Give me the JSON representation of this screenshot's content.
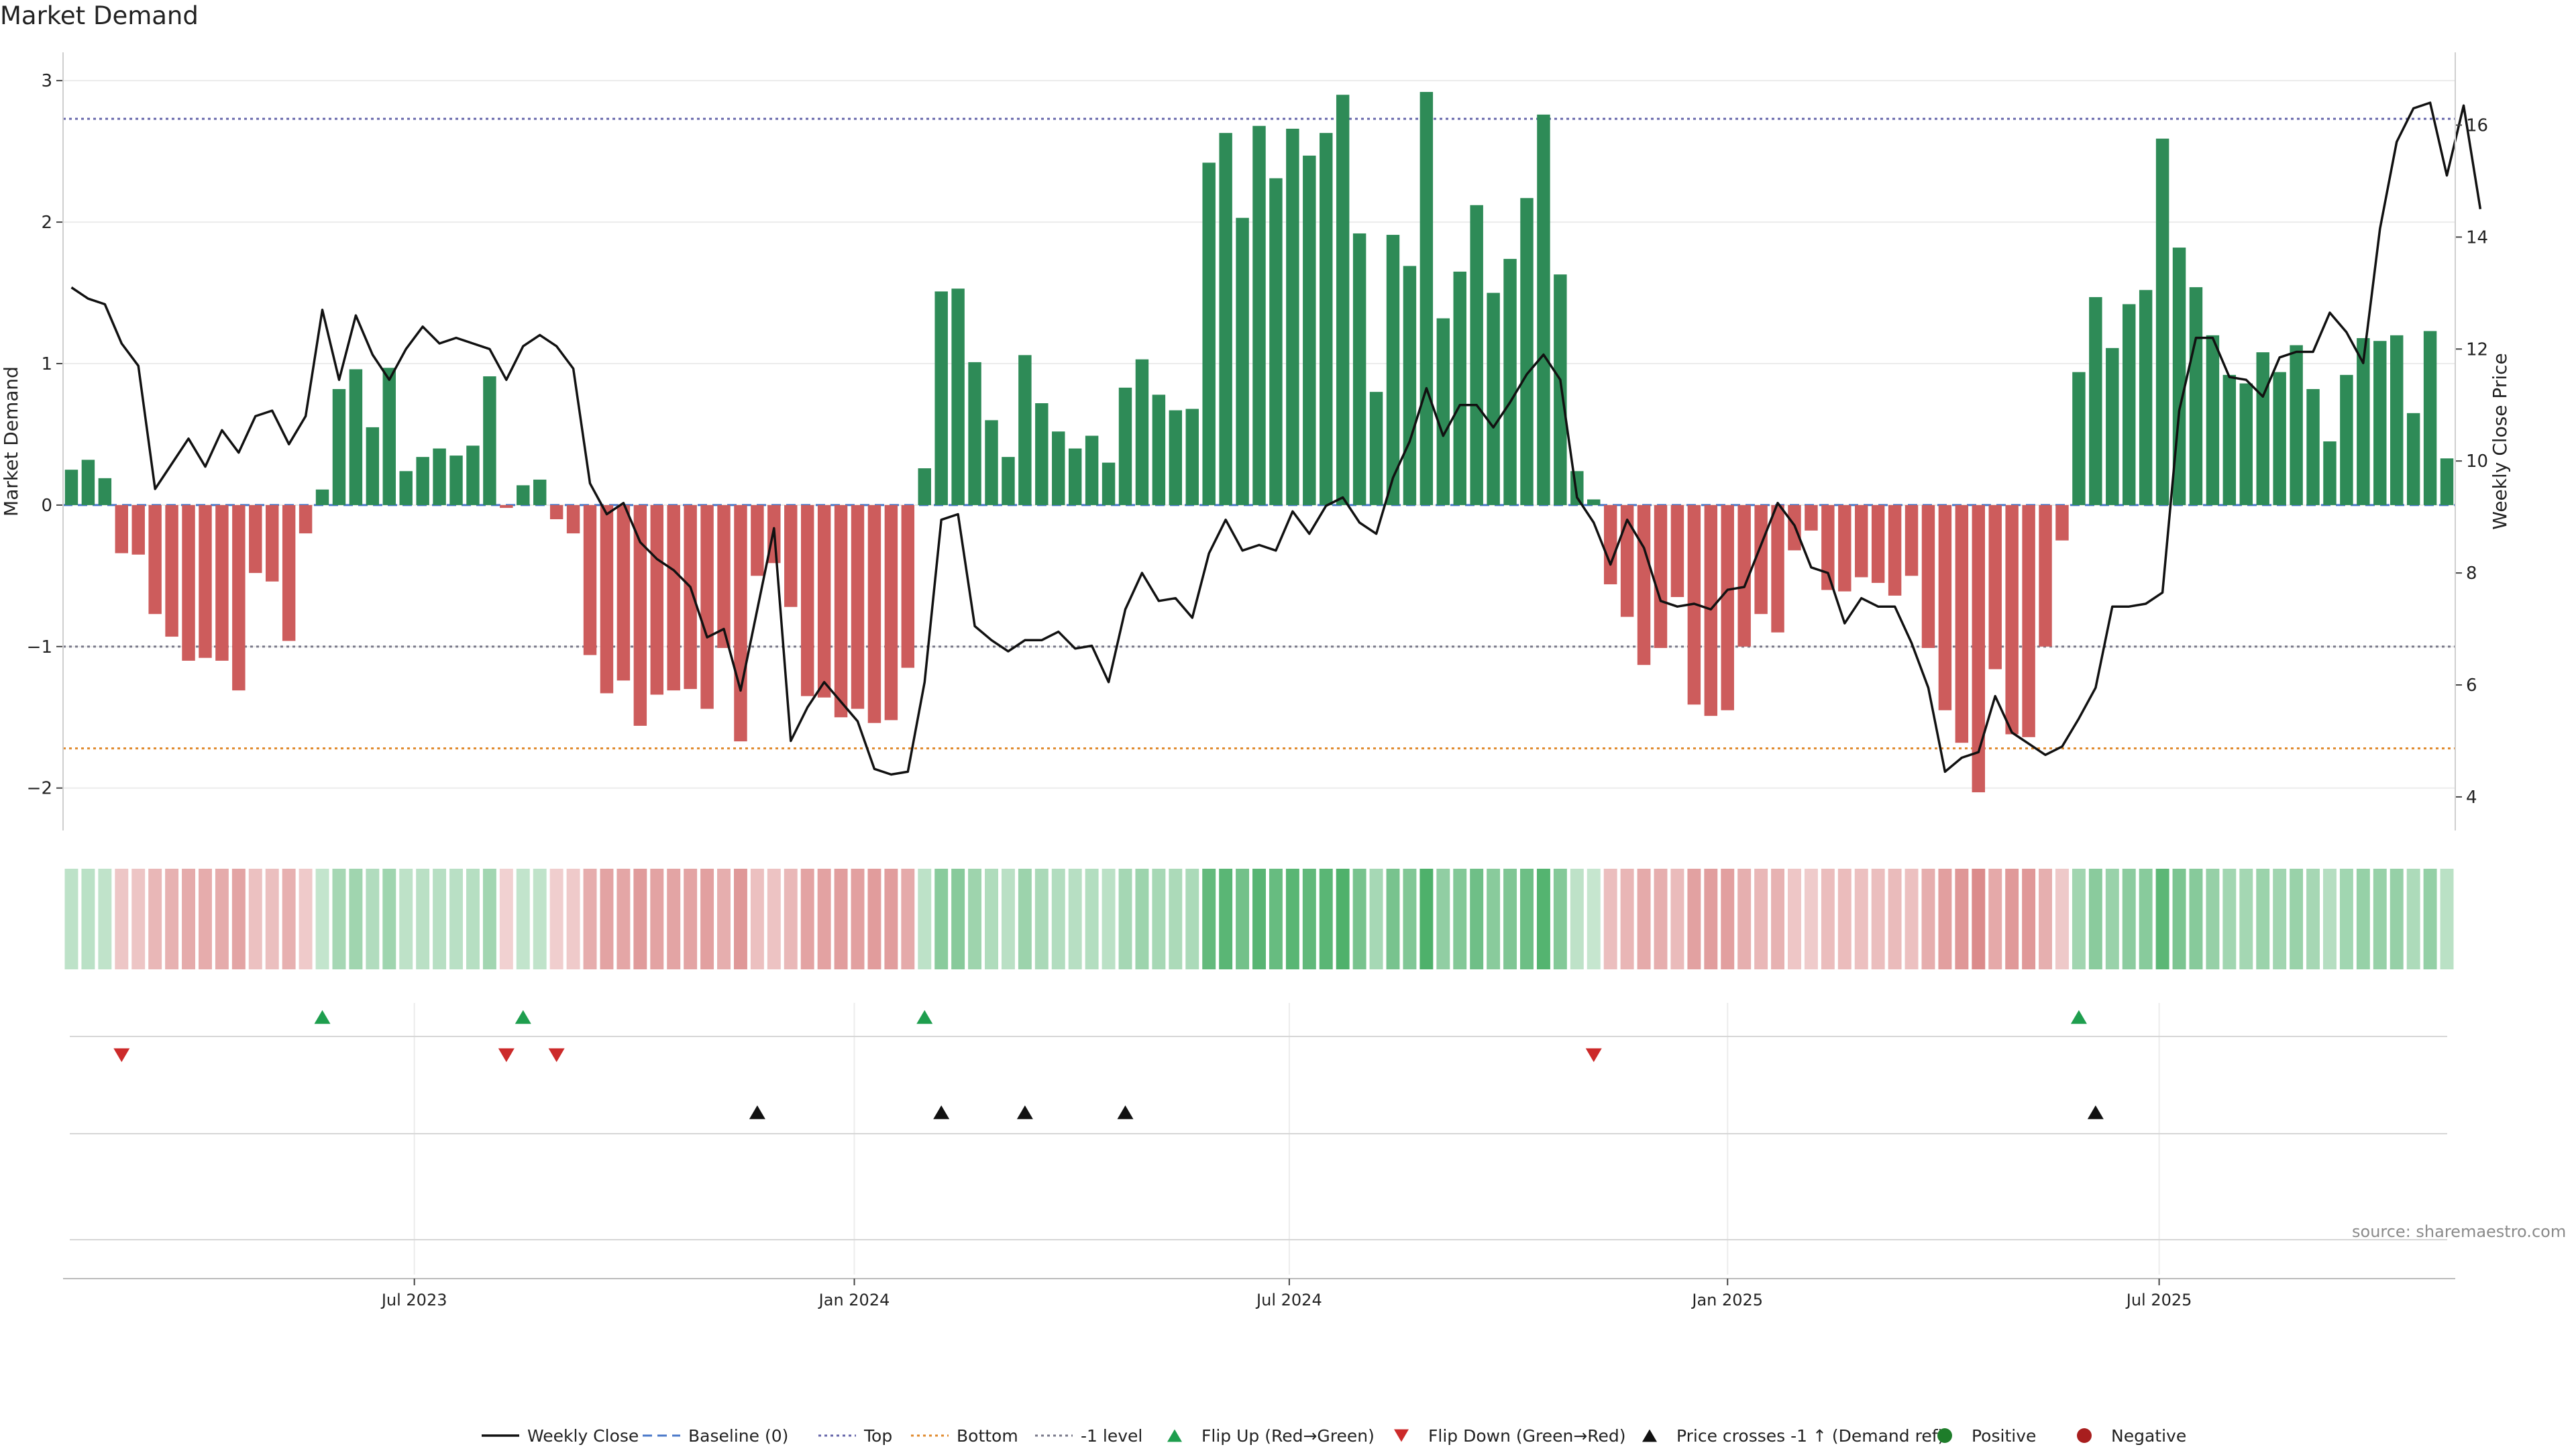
{
  "chart_data": {
    "type": "bar",
    "title": "Market Demand",
    "xlabel": "",
    "ylabel": "Market Demand",
    "y2label": "Weekly Close Price",
    "ylim": [
      -2.3,
      3.2
    ],
    "y2lim": [
      3.4,
      17.3
    ],
    "yticks": [
      3,
      2,
      1,
      0,
      -1,
      -2
    ],
    "yticklabels": [
      "3",
      "2",
      "1",
      "0",
      "−1",
      "−2"
    ],
    "y2ticks": [
      16,
      14,
      12,
      10,
      8,
      6,
      4
    ],
    "y2ticklabels": [
      "16",
      "14",
      "12",
      "10",
      "8",
      "6",
      "4"
    ],
    "xticks": [
      "Jul 2023",
      "Jan 2024",
      "Jul 2024",
      "Jan 2025",
      "Jul 2025"
    ],
    "xtick_index": [
      20.5,
      46.8,
      72.8,
      99.0,
      124.8
    ],
    "levels": {
      "top": 2.73,
      "bottom": -1.72,
      "neg_one": -1.0,
      "baseline": 0
    },
    "colors": {
      "positive": "#2e8b57",
      "negative": "#cd5c5c",
      "price": "#111111",
      "baseline": "#4a78c9",
      "top": "#6666aa",
      "bottom": "#e08a2c",
      "neg_level": "#777788",
      "flip_up": "#1e9e4e",
      "flip_down": "#cc2a2a",
      "cross": "#111111",
      "pos_dot": "#1e7d2a",
      "neg_dot": "#a81e1e"
    },
    "series": [
      {
        "name": "Market Demand",
        "values": [
          0.25,
          0.32,
          0.19,
          -0.34,
          -0.35,
          -0.77,
          -0.93,
          -1.1,
          -1.08,
          -1.1,
          -1.31,
          -0.48,
          -0.54,
          -0.96,
          -0.2,
          0.11,
          0.82,
          0.96,
          0.55,
          0.97,
          0.24,
          0.34,
          0.4,
          0.35,
          0.42,
          0.91,
          -0.02,
          0.14,
          0.18,
          -0.1,
          -0.2,
          -1.06,
          -1.33,
          -1.24,
          -1.56,
          -1.34,
          -1.31,
          -1.3,
          -1.44,
          -1.01,
          -1.67,
          -0.5,
          -0.41,
          -0.72,
          -1.35,
          -1.36,
          -1.5,
          -1.44,
          -1.54,
          -1.52,
          -1.15,
          0.26,
          1.51,
          1.53,
          1.01,
          0.6,
          0.34,
          1.06,
          0.72,
          0.52,
          0.4,
          0.49,
          0.3,
          0.83,
          1.03,
          0.78,
          0.67,
          0.68,
          2.42,
          2.63,
          2.03,
          2.68,
          2.31,
          2.66,
          2.47,
          2.63,
          2.9,
          1.92,
          0.8,
          1.91,
          1.69,
          2.92,
          1.32,
          1.65,
          2.12,
          1.5,
          1.74,
          2.17,
          2.76,
          1.63,
          0.24,
          0.04,
          -0.56,
          -0.79,
          -1.13,
          -1.01,
          -0.65,
          -1.41,
          -1.49,
          -1.45,
          -1.0,
          -0.77,
          -0.9,
          -0.32,
          -0.18,
          -0.6,
          -0.61,
          -0.51,
          -0.55,
          -0.64,
          -0.5,
          -1.01,
          -1.45,
          -1.68,
          -2.03,
          -1.16,
          -1.62,
          -1.64,
          -1.0,
          -0.25,
          0.94,
          1.47,
          1.11,
          1.42,
          1.52,
          2.59,
          1.82,
          1.54,
          1.2,
          0.92,
          0.86,
          1.08,
          0.94,
          1.13,
          0.82,
          0.45,
          0.92,
          1.18,
          1.16,
          1.2,
          0.65,
          1.23,
          0.33
        ]
      },
      {
        "name": "Weekly Close",
        "values": [
          13.1,
          12.9,
          12.8,
          12.1,
          11.7,
          9.5,
          9.95,
          10.4,
          9.9,
          10.55,
          10.15,
          10.8,
          10.9,
          10.3,
          10.8,
          12.7,
          11.45,
          12.6,
          11.9,
          11.45,
          12.0,
          12.4,
          12.1,
          12.2,
          12.1,
          12.0,
          11.45,
          12.05,
          12.25,
          12.05,
          11.65,
          9.6,
          9.05,
          9.25,
          8.55,
          8.25,
          8.05,
          7.75,
          6.85,
          7.0,
          5.9,
          7.35,
          8.8,
          5.0,
          5.6,
          6.05,
          5.7,
          5.35,
          4.5,
          4.4,
          4.45,
          6.05,
          8.95,
          9.05,
          7.05,
          6.8,
          6.6,
          6.8,
          6.8,
          6.95,
          6.65,
          6.7,
          6.05,
          7.35,
          8.0,
          7.5,
          7.55,
          7.2,
          8.35,
          8.95,
          8.4,
          8.5,
          8.4,
          9.1,
          8.7,
          9.2,
          9.35,
          8.9,
          8.7,
          9.7,
          10.35,
          11.3,
          10.45,
          11.0,
          11.0,
          10.6,
          11.05,
          11.55,
          11.9,
          11.45,
          9.35,
          8.9,
          8.15,
          8.95,
          8.45,
          7.5,
          7.4,
          7.45,
          7.35,
          7.7,
          7.75,
          8.5,
          9.25,
          8.85,
          8.1,
          8.0,
          7.1,
          7.55,
          7.4,
          7.4,
          6.75,
          5.95,
          4.45,
          4.7,
          4.8,
          5.8,
          5.15,
          4.95,
          4.75,
          4.9,
          5.4,
          5.95,
          7.4,
          7.4,
          7.45,
          7.65,
          10.9,
          12.2,
          12.2,
          11.5,
          11.45,
          11.15,
          11.85,
          11.95,
          11.95,
          12.65,
          12.3,
          11.75,
          14.15,
          15.7,
          16.3,
          16.4,
          15.1,
          16.35,
          14.5
        ]
      }
    ],
    "flip_up_index": [
      15,
      27,
      51,
      120
    ],
    "flip_down_index": [
      3,
      26,
      29,
      91
    ],
    "price_cross_index": [
      41,
      52,
      57,
      63,
      121
    ],
    "heat_series": "Market Demand",
    "legend": [
      "Weekly Close",
      "Baseline (0)",
      "Top",
      "Bottom",
      "-1 level",
      "Flip Up (Red→Green)",
      "Flip Down (Green→Red)",
      "Price crosses -1 ↑ (Demand ref)",
      "Positive",
      "Negative"
    ]
  },
  "source_note": "source: sharemaestro.com"
}
